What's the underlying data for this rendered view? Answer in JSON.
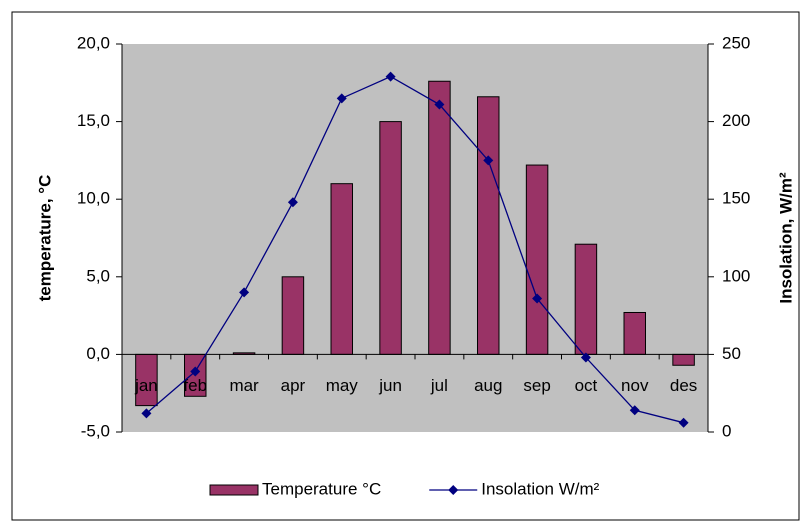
{
  "chart_data": {
    "type": "bar_line",
    "categories": [
      "jan",
      "feb",
      "mar",
      "apr",
      "may",
      "jun",
      "jul",
      "aug",
      "sep",
      "oct",
      "nov",
      "des"
    ],
    "series": [
      {
        "name": "Temperature °C",
        "color": "#993366",
        "type": "bar",
        "values": [
          -3.3,
          -2.7,
          0.1,
          5.0,
          11.0,
          15.0,
          17.6,
          16.6,
          12.2,
          7.1,
          2.7,
          -0.7
        ]
      },
      {
        "name": "Insolation W/m²",
        "color": "#000080",
        "type": "line",
        "axis": "y2",
        "values": [
          12,
          39,
          90,
          148,
          215,
          229,
          211,
          175,
          86,
          48,
          14,
          6
        ]
      }
    ],
    "ylabel": "temperature, °C",
    "y2label": "Insolation, W/m²",
    "ylim": [
      -5,
      20
    ],
    "yticks": [
      {
        "value": -5,
        "label": "-5,0"
      },
      {
        "value": 0,
        "label": "0,0"
      },
      {
        "value": 5,
        "label": "5,0"
      },
      {
        "value": 10,
        "label": "10,0"
      },
      {
        "value": 15,
        "label": "15,0"
      },
      {
        "value": 20,
        "label": "20,0"
      }
    ],
    "y2lim": [
      0,
      250
    ],
    "y2ticks": [
      0,
      50,
      100,
      150,
      200,
      250
    ],
    "plot_background": "#c0c0c0",
    "legend": "bottom"
  }
}
